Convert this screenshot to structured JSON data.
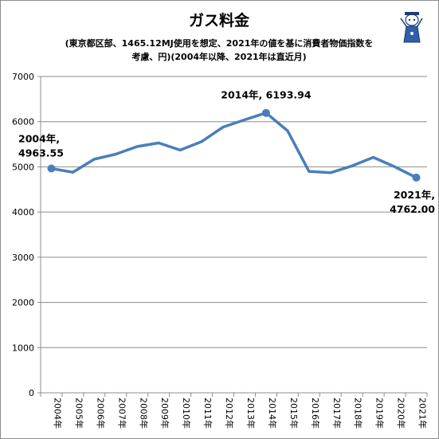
{
  "chart_data": {
    "type": "line",
    "title": "ガス料金",
    "subtitle_lines": [
      "(東京都区部、1465.12MJ使用を想定、2021年の値を基に消費者物価指数を",
      "考慮、円)(2004年以降、2021年は直近月)"
    ],
    "categories": [
      "2004年",
      "2005年",
      "2006年",
      "2007年",
      "2008年",
      "2009年",
      "2010年",
      "2011年",
      "2012年",
      "2013年",
      "2014年",
      "2015年",
      "2016年",
      "2017年",
      "2018年",
      "2019年",
      "2020年",
      "2021年"
    ],
    "values": [
      4963.55,
      4880,
      5170,
      5280,
      5450,
      5530,
      5370,
      5560,
      5880,
      6040,
      6193.94,
      5800,
      4900,
      4870,
      5020,
      5210,
      5000,
      4762.0
    ],
    "ylim": [
      0,
      7000
    ],
    "yticks": [
      0,
      1000,
      2000,
      3000,
      4000,
      5000,
      6000,
      7000
    ],
    "grid": true,
    "line_color": "#4a7ebb",
    "annotations": [
      {
        "index": 0,
        "lines": [
          "2004年,",
          "4963.55"
        ]
      },
      {
        "index": 10,
        "lines": [
          "2014年, 6193.94"
        ]
      },
      {
        "index": 17,
        "lines": [
          "2021年,",
          "4762.00"
        ]
      }
    ]
  }
}
